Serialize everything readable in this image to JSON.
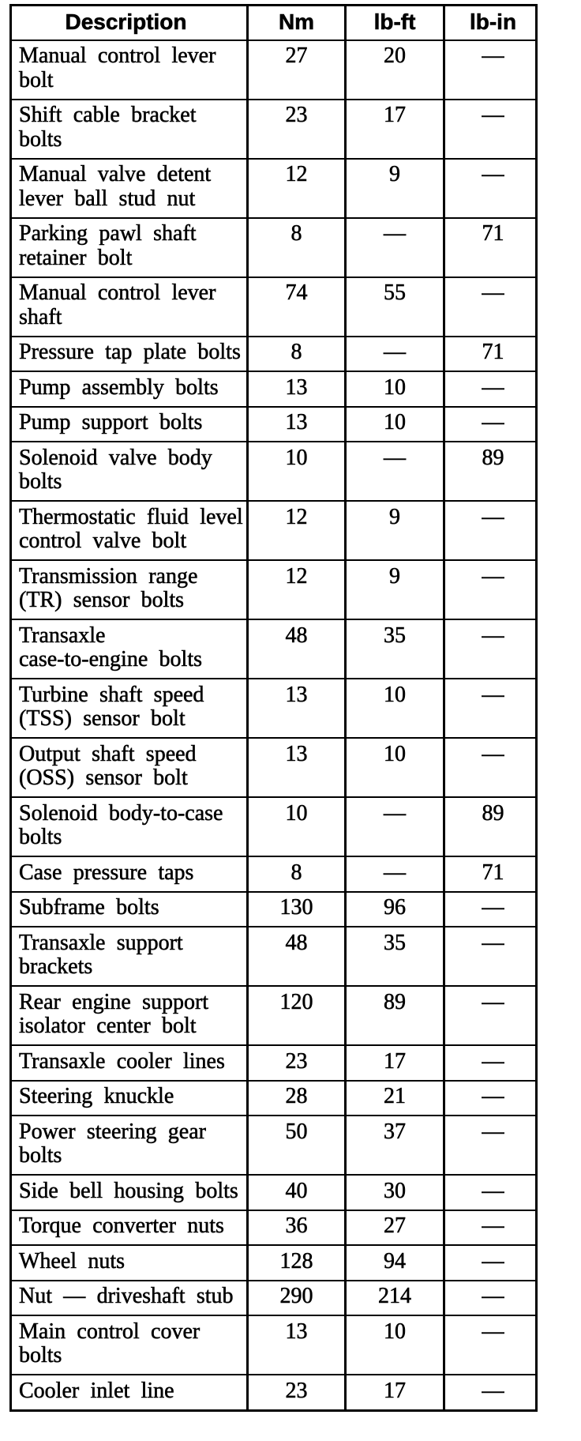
{
  "document": {
    "type": "torque-specifications-table",
    "background_color": "#ffffff",
    "line_color": "#000000",
    "text_color": "#000000"
  },
  "table": {
    "columns": [
      "Description",
      "Nm",
      "lb-ft",
      "lb-in"
    ],
    "rows": [
      {
        "description": [
          "Manual control lever",
          "bolt"
        ],
        "nm": "27",
        "lbft": "20",
        "lbin": "—"
      },
      {
        "description": [
          "Shift cable bracket",
          "bolts"
        ],
        "nm": "23",
        "lbft": "17",
        "lbin": "—"
      },
      {
        "description": [
          "Manual valve detent",
          "lever ball stud nut"
        ],
        "nm": "12",
        "lbft": "9",
        "lbin": "—"
      },
      {
        "description": [
          "Parking pawl shaft",
          "retainer bolt"
        ],
        "nm": "8",
        "lbft": "—",
        "lbin": "71"
      },
      {
        "description": [
          "Manual control lever",
          "shaft"
        ],
        "nm": "74",
        "lbft": "55",
        "lbin": "—"
      },
      {
        "description": [
          "Pressure tap plate bolts"
        ],
        "nm": "8",
        "lbft": "—",
        "lbin": "71"
      },
      {
        "description": [
          "Pump assembly bolts"
        ],
        "nm": "13",
        "lbft": "10",
        "lbin": "—"
      },
      {
        "description": [
          "Pump support bolts"
        ],
        "nm": "13",
        "lbft": "10",
        "lbin": "—"
      },
      {
        "description": [
          "Solenoid valve body",
          "bolts"
        ],
        "nm": "10",
        "lbft": "—",
        "lbin": "89"
      },
      {
        "description": [
          "Thermostatic fluid level",
          "control valve bolt"
        ],
        "nm": "12",
        "lbft": "9",
        "lbin": "—"
      },
      {
        "description": [
          "Transmission range",
          "(TR) sensor bolts"
        ],
        "nm": "12",
        "lbft": "9",
        "lbin": "—"
      },
      {
        "description": [
          "Transaxle",
          "case-to-engine bolts"
        ],
        "nm": "48",
        "lbft": "35",
        "lbin": "—"
      },
      {
        "description": [
          "Turbine shaft speed",
          "(TSS) sensor bolt"
        ],
        "nm": "13",
        "lbft": "10",
        "lbin": "—"
      },
      {
        "description": [
          "Output shaft speed",
          "(OSS) sensor bolt"
        ],
        "nm": "13",
        "lbft": "10",
        "lbin": "—"
      },
      {
        "description": [
          "Solenoid body-to-case",
          "bolts"
        ],
        "nm": "10",
        "lbft": "—",
        "lbin": "89"
      },
      {
        "description": [
          "Case pressure taps"
        ],
        "nm": "8",
        "lbft": "—",
        "lbin": "71"
      },
      {
        "description": [
          "Subframe bolts"
        ],
        "nm": "130",
        "lbft": "96",
        "lbin": "—"
      },
      {
        "description": [
          "Transaxle support",
          "brackets"
        ],
        "nm": "48",
        "lbft": "35",
        "lbin": "—"
      },
      {
        "description": [
          "Rear engine support",
          "isolator center bolt"
        ],
        "nm": "120",
        "lbft": "89",
        "lbin": "—"
      },
      {
        "description": [
          "Transaxle cooler lines"
        ],
        "nm": "23",
        "lbft": "17",
        "lbin": "—"
      },
      {
        "description": [
          "Steering knuckle"
        ],
        "nm": "28",
        "lbft": "21",
        "lbin": "—"
      },
      {
        "description": [
          "Power steering gear",
          "bolts"
        ],
        "nm": "50",
        "lbft": "37",
        "lbin": "—"
      },
      {
        "description": [
          "Side bell housing bolts"
        ],
        "nm": "40",
        "lbft": "30",
        "lbin": "—"
      },
      {
        "description": [
          "Torque converter nuts"
        ],
        "nm": "36",
        "lbft": "27",
        "lbin": "—"
      },
      {
        "description": [
          "Wheel nuts"
        ],
        "nm": "128",
        "lbft": "94",
        "lbin": "—"
      },
      {
        "description": [
          "Nut — driveshaft stub"
        ],
        "nm": "290",
        "lbft": "214",
        "lbin": "—"
      },
      {
        "description": [
          "Main control cover",
          "bolts"
        ],
        "nm": "13",
        "lbft": "10",
        "lbin": "—"
      },
      {
        "description": [
          "Cooler inlet line"
        ],
        "nm": "23",
        "lbft": "17",
        "lbin": "—"
      }
    ]
  }
}
